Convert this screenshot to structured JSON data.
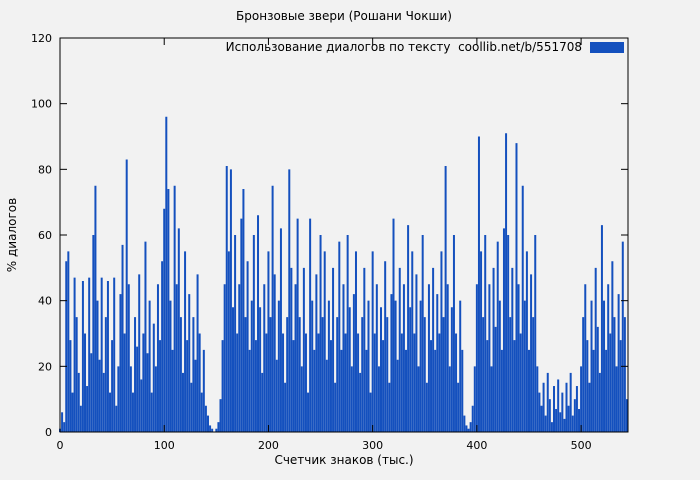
{
  "figure": {
    "background": "#f2f2f2",
    "text_color": "#000000"
  },
  "chart_data": {
    "type": "bar",
    "title": "Бронзовые звери (Рошани Чокши)",
    "xlabel": "Счетчик знаков (тыс.)",
    "ylabel": "% диалогов",
    "legend": {
      "label": "Использование диалогов по тексту  coollib.net/b/551708",
      "position": "top-right",
      "swatch_color": "#1450be"
    },
    "bar_color": "#1450be",
    "grid": false,
    "xlim": [
      0,
      545
    ],
    "ylim": [
      0,
      120
    ],
    "x_ticks": [
      0,
      100,
      200,
      300,
      400,
      500
    ],
    "y_ticks": [
      0,
      20,
      40,
      60,
      80,
      100,
      120
    ],
    "x_start": 0,
    "x_step": 2,
    "values": [
      1,
      6,
      3,
      52,
      55,
      28,
      12,
      47,
      35,
      18,
      8,
      46,
      30,
      14,
      47,
      24,
      60,
      75,
      40,
      22,
      47,
      18,
      35,
      46,
      12,
      28,
      47,
      8,
      20,
      42,
      57,
      30,
      83,
      45,
      20,
      12,
      35,
      26,
      48,
      16,
      30,
      58,
      24,
      40,
      12,
      33,
      20,
      45,
      28,
      52,
      68,
      96,
      74,
      40,
      25,
      75,
      45,
      62,
      35,
      18,
      55,
      28,
      42,
      15,
      35,
      22,
      48,
      30,
      12,
      25,
      8,
      5,
      2,
      1,
      0,
      1,
      3,
      10,
      28,
      45,
      81,
      55,
      80,
      38,
      60,
      30,
      45,
      65,
      74,
      35,
      52,
      25,
      40,
      60,
      28,
      66,
      38,
      18,
      45,
      30,
      55,
      35,
      75,
      48,
      22,
      40,
      62,
      30,
      15,
      35,
      80,
      50,
      28,
      45,
      65,
      35,
      20,
      50,
      30,
      12,
      65,
      40,
      25,
      48,
      30,
      60,
      35,
      55,
      22,
      40,
      28,
      50,
      15,
      35,
      58,
      25,
      45,
      30,
      60,
      38,
      20,
      42,
      55,
      30,
      18,
      35,
      50,
      25,
      40,
      12,
      55,
      30,
      45,
      20,
      38,
      28,
      52,
      35,
      15,
      42,
      65,
      40,
      22,
      50,
      30,
      45,
      25,
      63,
      38,
      55,
      30,
      48,
      20,
      40,
      60,
      35,
      15,
      45,
      28,
      50,
      25,
      42,
      30,
      55,
      35,
      81,
      45,
      20,
      38,
      60,
      30,
      15,
      40,
      25,
      5,
      2,
      1,
      3,
      8,
      20,
      45,
      90,
      55,
      35,
      60,
      28,
      45,
      20,
      50,
      32,
      58,
      40,
      25,
      62,
      91,
      60,
      35,
      50,
      28,
      88,
      45,
      30,
      75,
      40,
      55,
      25,
      48,
      35,
      60,
      20,
      12,
      8,
      15,
      5,
      18,
      10,
      3,
      14,
      7,
      16,
      6,
      12,
      4,
      15,
      8,
      18,
      5,
      10,
      14,
      7,
      20,
      35,
      45,
      28,
      15,
      40,
      25,
      50,
      32,
      18,
      63,
      40,
      25,
      45,
      30,
      52,
      35,
      20,
      42,
      28,
      58,
      35,
      10
    ]
  }
}
